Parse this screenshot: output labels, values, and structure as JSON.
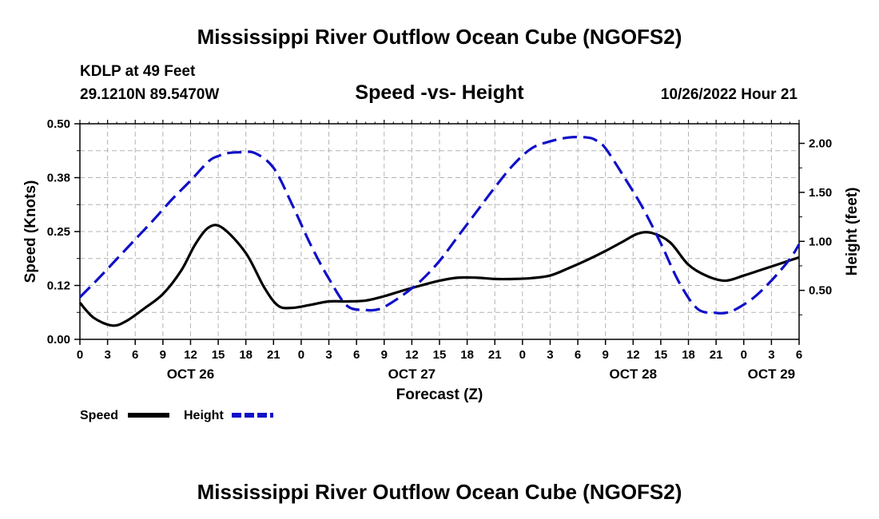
{
  "chart_data": {
    "type": "line",
    "title": "Mississippi River Outflow Ocean Cube (NGOFS2)",
    "subtitle": "Speed -vs- Height",
    "station": "KDLP at 49 Feet",
    "location": "29.1210N  89.5470W",
    "timestamp": "10/26/2022 Hour 21",
    "xlabel": "Forecast (Z)",
    "ylabel_left": "Speed (Knots)",
    "ylabel_right": "Height (feet)",
    "x_range_hours": [
      0,
      78
    ],
    "x_ticks": [
      "0",
      "3",
      "6",
      "9",
      "12",
      "15",
      "18",
      "21",
      "0",
      "3",
      "6",
      "9",
      "12",
      "15",
      "18",
      "21",
      "0",
      "3",
      "6",
      "9",
      "12",
      "15",
      "18",
      "21",
      "0",
      "3",
      "6"
    ],
    "x_date_labels": [
      {
        "hour": 12,
        "label": "OCT 26"
      },
      {
        "hour": 36,
        "label": "OCT 27"
      },
      {
        "hour": 60,
        "label": "OCT 28"
      },
      {
        "hour": 75,
        "label": "OCT 29"
      }
    ],
    "y_left": {
      "range": [
        0,
        0.5
      ],
      "ticks": [
        "0.00",
        "0.12",
        "0.25",
        "0.38",
        "0.50"
      ]
    },
    "y_right": {
      "range": [
        0,
        2.2
      ],
      "ticks": [
        "0.50",
        "1.00",
        "1.50",
        "2.00"
      ]
    },
    "grid": true,
    "legend": [
      {
        "name": "Speed",
        "color": "#000000",
        "dash": "solid"
      },
      {
        "name": "Height",
        "color": "#1010c8",
        "dash": "dashed"
      }
    ],
    "series": [
      {
        "name": "Speed",
        "axis": "left",
        "color": "#000000",
        "x": [
          0,
          1.5,
          3.5,
          5,
          7,
          9,
          11,
          12.5,
          14,
          15.5,
          18,
          20,
          21.5,
          23,
          25,
          27,
          29,
          31,
          33,
          35,
          37,
          39,
          41,
          43,
          45,
          47,
          49,
          51,
          53,
          55,
          57,
          59,
          60.5,
          62,
          64,
          66,
          68,
          70,
          72,
          74,
          76,
          78
        ],
        "values": [
          0.085,
          0.05,
          0.032,
          0.042,
          0.072,
          0.105,
          0.16,
          0.22,
          0.26,
          0.258,
          0.2,
          0.12,
          0.078,
          0.073,
          0.08,
          0.088,
          0.088,
          0.09,
          0.1,
          0.113,
          0.125,
          0.136,
          0.143,
          0.143,
          0.14,
          0.14,
          0.142,
          0.148,
          0.165,
          0.184,
          0.205,
          0.228,
          0.245,
          0.247,
          0.225,
          0.173,
          0.147,
          0.136,
          0.148,
          0.162,
          0.176,
          0.19
        ]
      },
      {
        "name": "Height",
        "axis": "right",
        "color": "#1010c8",
        "x": [
          0,
          2,
          4,
          6,
          8,
          10,
          12,
          14,
          15,
          16,
          17.5,
          19,
          21,
          23,
          25,
          27,
          29,
          31,
          32,
          33,
          35,
          37,
          39,
          41,
          43,
          45,
          47,
          49,
          51,
          53,
          55,
          56,
          57,
          59,
          61,
          63,
          65,
          67,
          69,
          70,
          71,
          73,
          75,
          77,
          78
        ],
        "values": [
          0.43,
          0.62,
          0.82,
          1.02,
          1.22,
          1.43,
          1.62,
          1.82,
          1.87,
          1.9,
          1.91,
          1.9,
          1.75,
          1.38,
          0.97,
          0.62,
          0.34,
          0.3,
          0.3,
          0.33,
          0.45,
          0.6,
          0.8,
          1.05,
          1.3,
          1.55,
          1.78,
          1.95,
          2.02,
          2.06,
          2.06,
          2.03,
          1.95,
          1.66,
          1.35,
          0.98,
          0.58,
          0.31,
          0.27,
          0.27,
          0.3,
          0.42,
          0.6,
          0.82,
          0.97
        ]
      }
    ]
  },
  "footer_title": "Mississippi River Outflow Ocean Cube (NGOFS2)"
}
